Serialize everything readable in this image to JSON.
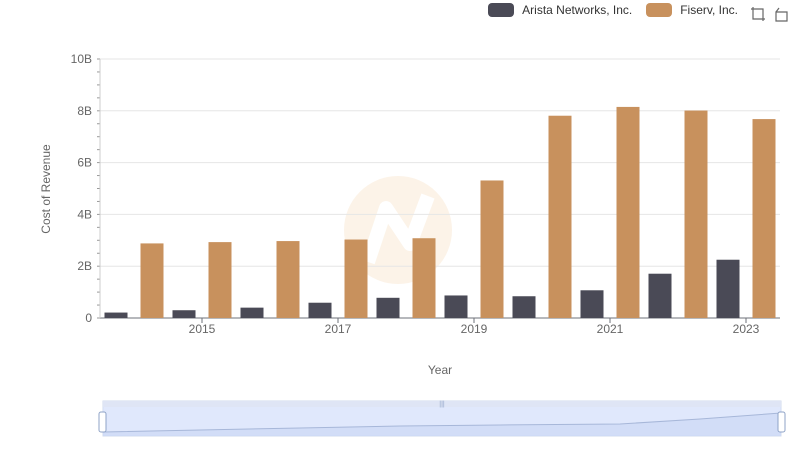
{
  "legend": {
    "items": [
      {
        "label": "Arista Networks, Inc.",
        "color": "#4a4a56"
      },
      {
        "label": "Fiserv, Inc.",
        "color": "#c8915d"
      }
    ]
  },
  "toolbox": {
    "zoom_icon": "zoom-icon",
    "restore_icon": "restore-icon"
  },
  "chart_data": {
    "type": "bar",
    "categories": [
      "2014",
      "2015",
      "2016",
      "2017",
      "2018",
      "2019",
      "2020",
      "2021",
      "2022",
      "2023"
    ],
    "x_tick_labels": [
      "2015",
      "2017",
      "2019",
      "2021",
      "2023"
    ],
    "series": [
      {
        "name": "Arista Networks, Inc.",
        "color": "#4a4a56",
        "values": [
          0.21,
          0.3,
          0.4,
          0.59,
          0.78,
          0.87,
          0.84,
          1.07,
          1.71,
          2.25
        ]
      },
      {
        "name": "Fiserv, Inc.",
        "color": "#c8915d",
        "values": [
          2.88,
          2.93,
          2.97,
          3.03,
          3.08,
          5.31,
          7.81,
          8.15,
          8.01,
          7.68
        ]
      }
    ],
    "y_ticks": [
      "0",
      "2B",
      "4B",
      "6B",
      "8B",
      "10B"
    ],
    "ylim": [
      0,
      10
    ],
    "xlabel": "Year",
    "ylabel": "Cost of Revenue",
    "grid": true,
    "legend_position": "top-right",
    "units": "billions"
  }
}
